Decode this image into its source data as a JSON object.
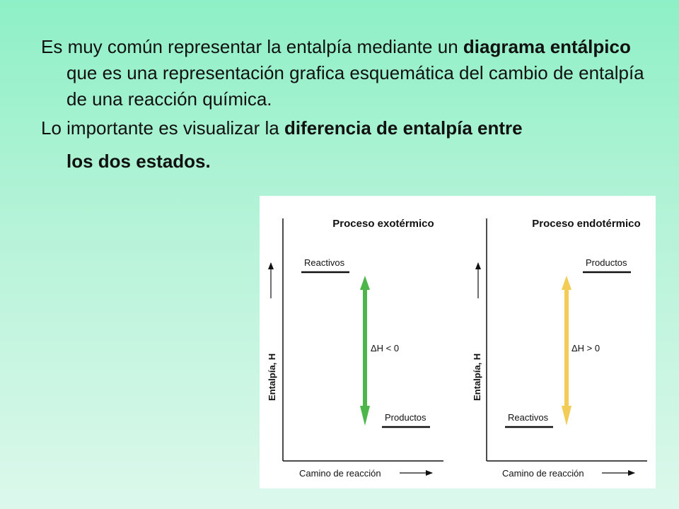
{
  "text": {
    "p1_part1": "Es muy común representar la entalpía mediante un ",
    "p1_bold": "diagrama entálpico",
    "p1_part2": " que es una representación grafica esquemática del cambio de entalpía de una reacción química.",
    "p2_part1": "Lo importante es visualizar la ",
    "p2_bold": "diferencia de entalpía entre",
    "p2_cont": "los dos estados."
  },
  "diagrams": {
    "exo": {
      "title": "Proceso exotérmico",
      "y_label": "Entalpía, H",
      "x_label": "Camino de reacción",
      "top_level": "Reactivos",
      "bottom_level": "Productos",
      "delta": "ΔH < 0",
      "arrow_color": "#4cb64a"
    },
    "endo": {
      "title": "Proceso endotérmico",
      "y_label": "Entalpía, H",
      "x_label": "Camino de reacción",
      "top_level": "Productos",
      "bottom_level": "Reactivos",
      "delta": "ΔH > 0",
      "arrow_color": "#f2cc55"
    }
  }
}
